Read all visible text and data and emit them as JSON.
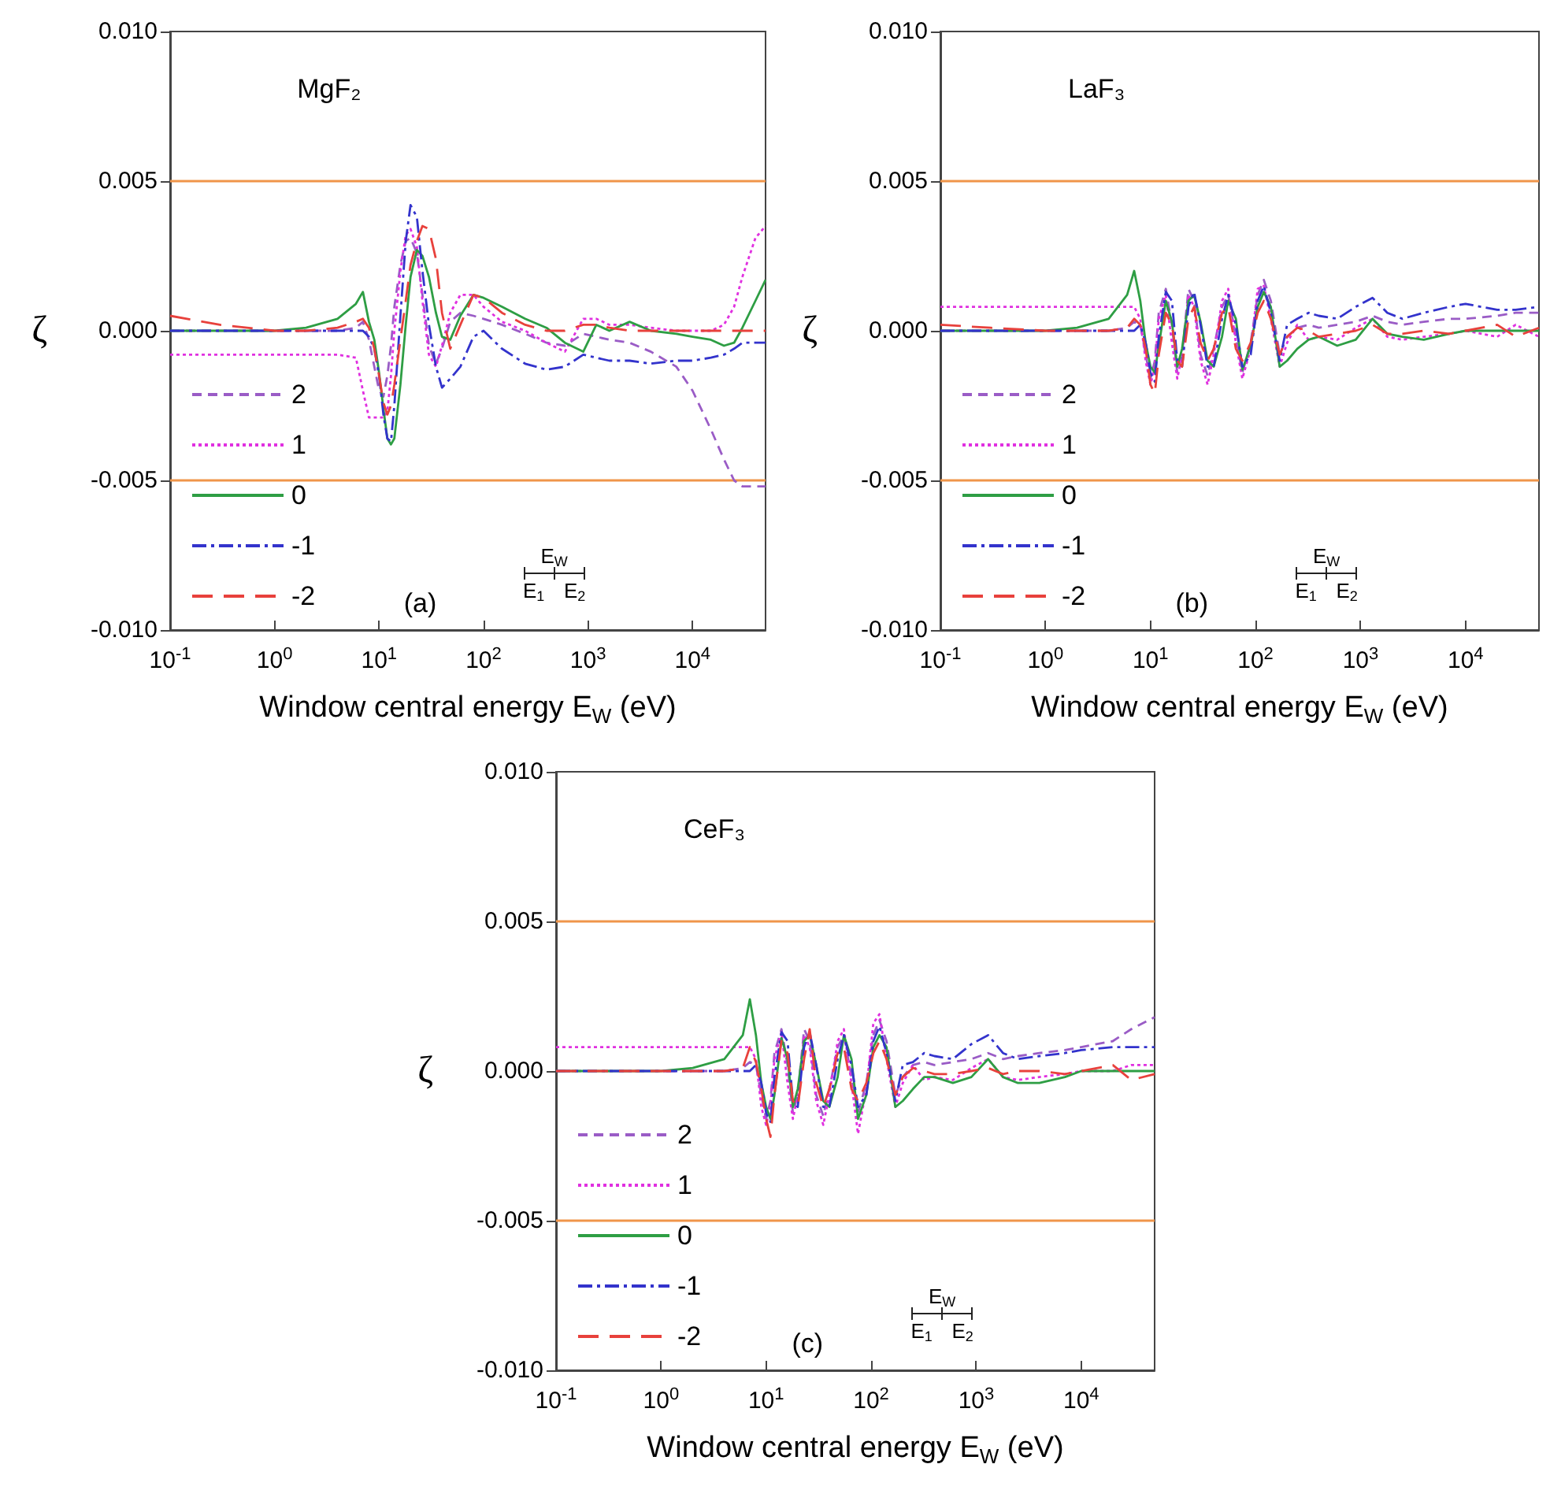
{
  "chart_data": [
    {
      "type": "line",
      "title": "MgF₂",
      "xlabel": "Window central energy E$_{W}$ (eV)",
      "ylabel": "ζ",
      "log": "x",
      "legend": "bottom left",
      "annotations": [
        "(a)",
        "E$_{W}$",
        "E$_{1}$",
        "E$_{2}$"
      ],
      "xlim": [
        0.1,
        50000
      ],
      "xticks": [
        {
          "value": 0.1,
          "label": "10$^{-1}$"
        },
        {
          "value": 1,
          "label": "10$^{0}$"
        },
        {
          "value": 10,
          "label": "10$^{1}$"
        },
        {
          "value": 100,
          "label": "10$^{2}$"
        },
        {
          "value": 1000,
          "label": "10$^{3}$"
        },
        {
          "value": 10000,
          "label": "10$^{4}$"
        }
      ],
      "ylim": [
        -0.01,
        0.01
      ],
      "yticks": [
        {
          "value": -0.01,
          "label": "-0.010"
        },
        {
          "value": -0.005,
          "label": "-0.005"
        },
        {
          "value": 0,
          "label": "0.000"
        },
        {
          "value": 0.005,
          "label": "0.005"
        },
        {
          "value": 0.01,
          "label": "0.010"
        }
      ],
      "ref_lines": [
        {
          "axis": "y",
          "value": 0.005,
          "color": "#f0954a"
        },
        {
          "axis": "y",
          "value": -0.005,
          "color": "#f0954a"
        }
      ],
      "x": [
        0.1,
        0.3,
        1,
        2,
        4,
        6,
        7,
        8,
        9,
        10,
        11,
        12,
        13,
        14,
        16,
        18,
        20,
        23,
        26,
        30,
        35,
        40,
        48,
        60,
        80,
        100,
        150,
        250,
        400,
        600,
        900,
        1200,
        1600,
        2500,
        4000,
        7000,
        10000,
        15000,
        20000,
        25000,
        30000,
        40000,
        50000
      ],
      "series": [
        {
          "name": "2",
          "color": "#9a5cc6",
          "line_style": "dashed",
          "values": [
            0,
            0,
            0,
            0,
            0,
            0.0001,
            0.0003,
            -0.0003,
            -0.0012,
            -0.002,
            -0.0022,
            -0.0015,
            -0.0005,
            0.0008,
            0.0022,
            0.003,
            0.0031,
            0.0026,
            0.0012,
            -0.0005,
            -0.0011,
            -0.0006,
            0.0003,
            0.0006,
            0.0005,
            0.0004,
            0.0002,
            -0.0001,
            -0.0004,
            -0.0005,
            -0.0001,
            -0.0002,
            -0.0003,
            -0.0004,
            -0.0007,
            -0.0012,
            -0.002,
            -0.0033,
            -0.0043,
            -0.005,
            -0.0052,
            -0.0052,
            -0.0052
          ]
        },
        {
          "name": "1",
          "color": "#e030e0",
          "line_style": "dotted",
          "values": [
            -0.0008,
            -0.0008,
            -0.0008,
            -0.0008,
            -0.0008,
            -0.0009,
            -0.002,
            -0.0029,
            -0.0029,
            -0.0029,
            -0.0029,
            -0.0027,
            -0.0015,
            0,
            0.002,
            0.0032,
            0.0034,
            0.0028,
            0.001,
            -0.0008,
            -0.0012,
            -0.0005,
            0.0006,
            0.0012,
            0.0012,
            0.0008,
            0.0003,
            0,
            -0.0004,
            -0.0007,
            0.0004,
            0.0004,
            0.0002,
            0.0002,
            0.0001,
            0,
            0,
            0,
            0.0002,
            0.0008,
            0.0018,
            0.0031,
            0.0035
          ]
        },
        {
          "name": "0",
          "color": "#2e9e44",
          "line_style": "solid",
          "values": [
            0,
            0,
            0,
            0.0001,
            0.0004,
            0.0009,
            0.0013,
            0.0003,
            -0.0003,
            -0.0014,
            -0.0026,
            -0.0036,
            -0.0038,
            -0.0036,
            -0.0018,
            0.0002,
            0.0018,
            0.0027,
            0.0025,
            0.0018,
            0.0006,
            -0.0002,
            -0.0003,
            0.0005,
            0.0012,
            0.0011,
            0.0008,
            0.0004,
            0.0001,
            -0.0004,
            -0.0007,
            0.0002,
            0,
            0.0003,
            0,
            -0.0001,
            -0.0002,
            -0.0003,
            -0.0005,
            -0.0004,
            0.0001,
            0.001,
            0.0017
          ]
        },
        {
          "name": "-1",
          "color": "#3333cc",
          "line_style": "dashdot",
          "values": [
            0,
            0,
            0,
            0,
            0,
            0,
            0,
            -0.0002,
            -0.0006,
            -0.0015,
            -0.0028,
            -0.0036,
            -0.0037,
            -0.0025,
            0.0005,
            0.003,
            0.0042,
            0.0038,
            0.002,
            0.0002,
            -0.0012,
            -0.0019,
            -0.0016,
            -0.0012,
            -0.0002,
            0,
            -0.0006,
            -0.0011,
            -0.0013,
            -0.0012,
            -0.0008,
            -0.0009,
            -0.001,
            -0.001,
            -0.0011,
            -0.001,
            -0.001,
            -0.0009,
            -0.0008,
            -0.0006,
            -0.0004,
            -0.0004,
            -0.0004
          ]
        },
        {
          "name": "-2",
          "color": "#e8413c",
          "line_style": "longdash",
          "values": [
            0.0005,
            0.0002,
            0,
            0,
            0.0001,
            0.0003,
            0.0004,
            0.0001,
            -0.0006,
            -0.0015,
            -0.0024,
            -0.0028,
            -0.0025,
            -0.0018,
            -0.0003,
            0.001,
            0.0022,
            0.003,
            0.0035,
            0.0034,
            0.0024,
            0.0006,
            -0.0006,
            0.0002,
            0.0012,
            0.0011,
            0.0006,
            0.0002,
            0,
            0,
            0.0002,
            0.0002,
            0.0001,
            0,
            0,
            0,
            0,
            0,
            0,
            0,
            0,
            0,
            0
          ]
        }
      ]
    },
    {
      "type": "line",
      "title": "LaF₃",
      "xlabel": "Window central energy E$_{W}$ (eV)",
      "ylabel": "ζ",
      "log": "x",
      "legend": "bottom left",
      "annotations": [
        "(b)",
        "E$_{W}$",
        "E$_{1}$",
        "E$_{2}$"
      ],
      "xlim": [
        0.1,
        50000
      ],
      "xticks": [
        {
          "value": 0.1,
          "label": "10$^{-1}$"
        },
        {
          "value": 1,
          "label": "10$^{0}$"
        },
        {
          "value": 10,
          "label": "10$^{1}$"
        },
        {
          "value": 100,
          "label": "10$^{2}$"
        },
        {
          "value": 1000,
          "label": "10$^{3}$"
        },
        {
          "value": 10000,
          "label": "10$^{4}$"
        }
      ],
      "ylim": [
        -0.01,
        0.01
      ],
      "yticks": [
        {
          "value": -0.01,
          "label": "-0.010"
        },
        {
          "value": -0.005,
          "label": "-0.005"
        },
        {
          "value": 0,
          "label": "0.000"
        },
        {
          "value": 0.005,
          "label": "0.005"
        },
        {
          "value": 0.01,
          "label": "0.010"
        }
      ],
      "ref_lines": [
        {
          "axis": "y",
          "value": 0.005,
          "color": "#f0954a"
        },
        {
          "axis": "y",
          "value": -0.005,
          "color": "#f0954a"
        }
      ],
      "x": [
        0.1,
        0.3,
        1,
        2,
        4,
        6,
        7,
        8,
        9,
        10,
        11,
        12,
        14,
        16,
        18,
        20,
        23,
        26,
        30,
        35,
        40,
        48,
        55,
        65,
        75,
        90,
        105,
        120,
        140,
        170,
        200,
        250,
        320,
        400,
        600,
        900,
        1300,
        1800,
        2500,
        4000,
        7000,
        10000,
        20000,
        30000,
        50000
      ],
      "series": [
        {
          "name": "2",
          "color": "#9a5cc6",
          "line_style": "dashed",
          "values": [
            0,
            0,
            0,
            0,
            0,
            0.0001,
            0.0003,
            0.0002,
            -0.0008,
            -0.0016,
            -0.001,
            0.0006,
            0.0014,
            0.0002,
            -0.0014,
            -0.0008,
            0.0014,
            0.001,
            -0.0008,
            -0.0015,
            -0.0006,
            0.0008,
            0.0012,
            -0.0002,
            -0.0014,
            -0.0004,
            0.0012,
            0.0017,
            0.001,
            -0.0008,
            -0.0002,
            0.0001,
            0.0002,
            0.0001,
            0.0002,
            0.0003,
            0.0005,
            0.0003,
            0.0002,
            0.0003,
            0.0004,
            0.0004,
            0.0005,
            0.0006,
            0.0006
          ]
        },
        {
          "name": "1",
          "color": "#e030e0",
          "line_style": "dotted",
          "values": [
            0.0008,
            0.0008,
            0.0008,
            0.0008,
            0.0008,
            0.0008,
            0.0008,
            0.0004,
            -0.001,
            -0.0018,
            -0.0012,
            0.0004,
            0.0012,
            -0.0004,
            -0.0016,
            -0.0008,
            0.0012,
            0.0008,
            -0.001,
            -0.0018,
            -0.0008,
            0.001,
            0.0014,
            -0.0004,
            -0.0016,
            -0.0006,
            0.0014,
            0.0015,
            0.0004,
            -0.0012,
            -0.0004,
            0.0002,
            -0.0003,
            -0.0002,
            -0.0003,
            0.0001,
            0.0004,
            -0.0002,
            -0.0003,
            -0.0002,
            -0.0001,
            0,
            -0.0002,
            0.0002,
            -0.0002
          ]
        },
        {
          "name": "0",
          "color": "#2e9e44",
          "line_style": "solid",
          "values": [
            0,
            0,
            0,
            0.0001,
            0.0004,
            0.0012,
            0.002,
            0.001,
            -0.0004,
            -0.0012,
            -0.0014,
            -0.0005,
            0.001,
            0.0003,
            -0.0012,
            -0.0006,
            0.001,
            0.0012,
            0.0003,
            -0.001,
            -0.0012,
            -0.0002,
            0.001,
            0.0004,
            -0.0013,
            -0.0005,
            0.0008,
            0.0013,
            0.0008,
            -0.0012,
            -0.001,
            -0.0006,
            -0.0003,
            -0.0002,
            -0.0005,
            -0.0003,
            0.0004,
            -0.0001,
            -0.0002,
            -0.0003,
            -0.0001,
            0,
            0,
            0,
            0
          ]
        },
        {
          "name": "-1",
          "color": "#3333cc",
          "line_style": "dashdot",
          "values": [
            0,
            0,
            0,
            0,
            0,
            0,
            0,
            0.0002,
            -0.0004,
            -0.0014,
            -0.0017,
            -0.0002,
            0.0013,
            0.001,
            -0.001,
            -0.0012,
            0.0008,
            0.0013,
            0.0002,
            -0.0012,
            -0.0012,
            0.0004,
            0.0012,
            0.0002,
            -0.0012,
            -0.0008,
            0.001,
            0.0015,
            0.0006,
            -0.001,
            0.0002,
            0.0004,
            0.0006,
            0.0005,
            0.0004,
            0.0008,
            0.0011,
            0.0006,
            0.0004,
            0.0006,
            0.0008,
            0.0009,
            0.0007,
            0.0007,
            0.0008
          ]
        },
        {
          "name": "-2",
          "color": "#e8413c",
          "line_style": "longdash",
          "values": [
            0.0002,
            0.0001,
            0,
            0,
            0,
            0.0001,
            0.0004,
            0.0002,
            -0.0006,
            -0.0018,
            -0.0021,
            -0.0008,
            0.0006,
            0.0002,
            -0.001,
            -0.0012,
            0.0004,
            0.0008,
            -0.0004,
            -0.001,
            -0.0006,
            0.0006,
            0.0008,
            -0.0006,
            -0.001,
            -0.0004,
            0.0006,
            0.001,
            0.0004,
            -0.0008,
            -0.0002,
            0.0001,
            0,
            -0.0002,
            -0.0001,
            0,
            0.0002,
            -0.0001,
            -0.0001,
            0,
            -0.0001,
            0,
            0.0002,
            -0.0002,
            0.0001
          ]
        }
      ]
    },
    {
      "type": "line",
      "title": "CeF₃",
      "xlabel": "Window central energy E$_{W}$ (eV)",
      "ylabel": "ζ",
      "log": "x",
      "legend": "bottom left",
      "annotations": [
        "(c)",
        "E$_{W}$",
        "E$_{1}$",
        "E$_{2}$"
      ],
      "xlim": [
        0.1,
        50000
      ],
      "xticks": [
        {
          "value": 0.1,
          "label": "10$^{-1}$"
        },
        {
          "value": 1,
          "label": "10$^{0}$"
        },
        {
          "value": 10,
          "label": "10$^{1}$"
        },
        {
          "value": 100,
          "label": "10$^{2}$"
        },
        {
          "value": 1000,
          "label": "10$^{3}$"
        },
        {
          "value": 10000,
          "label": "10$^{4}$"
        }
      ],
      "ylim": [
        -0.01,
        0.01
      ],
      "yticks": [
        {
          "value": -0.01,
          "label": "-0.010"
        },
        {
          "value": -0.005,
          "label": "-0.005"
        },
        {
          "value": 0,
          "label": "0.000"
        },
        {
          "value": 0.005,
          "label": "0.005"
        },
        {
          "value": 0.01,
          "label": "0.010"
        }
      ],
      "ref_lines": [
        {
          "axis": "y",
          "value": 0.005,
          "color": "#f0954a"
        },
        {
          "axis": "y",
          "value": -0.005,
          "color": "#f0954a"
        }
      ],
      "x": [
        0.1,
        0.3,
        1,
        2,
        4,
        6,
        7,
        8,
        9,
        10,
        11,
        12,
        14,
        16,
        18,
        20,
        23,
        26,
        30,
        35,
        40,
        48,
        55,
        65,
        75,
        90,
        105,
        120,
        140,
        170,
        200,
        250,
        320,
        400,
        600,
        900,
        1300,
        1800,
        2500,
        4000,
        7000,
        10000,
        20000,
        30000,
        50000
      ],
      "series": [
        {
          "name": "2",
          "color": "#9a5cc6",
          "line_style": "dashed",
          "values": [
            0,
            0,
            0,
            0,
            0,
            0.0001,
            0.0003,
            0.0002,
            -0.0008,
            -0.0016,
            -0.001,
            0.0006,
            0.0014,
            0.0002,
            -0.0014,
            -0.0008,
            0.0014,
            0.001,
            -0.0008,
            -0.0015,
            -0.0006,
            0.0008,
            0.0012,
            -0.0002,
            -0.0014,
            -0.0004,
            0.0012,
            0.0017,
            0.001,
            -0.0008,
            -0.0002,
            0.0002,
            0.0003,
            0.0002,
            0.0003,
            0.0004,
            0.0006,
            0.0004,
            0.0005,
            0.0006,
            0.0007,
            0.0008,
            0.001,
            0.0014,
            0.0018
          ]
        },
        {
          "name": "1",
          "color": "#e030e0",
          "line_style": "dotted",
          "values": [
            0.0008,
            0.0008,
            0.0008,
            0.0008,
            0.0008,
            0.0008,
            0.0008,
            0.0004,
            -0.0012,
            -0.0018,
            -0.0012,
            0.0004,
            0.0013,
            -0.0004,
            -0.0016,
            -0.0008,
            0.0012,
            0.0008,
            -0.001,
            -0.0018,
            -0.0008,
            0.001,
            0.0014,
            -0.0004,
            -0.0021,
            -0.0006,
            0.0016,
            0.0019,
            0.0004,
            -0.0012,
            -0.0004,
            0.0002,
            -0.0003,
            -0.0002,
            -0.0003,
            0.0001,
            0.0004,
            -0.0002,
            -0.0003,
            -0.0002,
            -0.0001,
            0,
            0,
            0.0002,
            0.0002
          ]
        },
        {
          "name": "0",
          "color": "#2e9e44",
          "line_style": "solid",
          "values": [
            0,
            0,
            0,
            0.0001,
            0.0004,
            0.0012,
            0.0024,
            0.0012,
            -0.0004,
            -0.0012,
            -0.0016,
            -0.0008,
            0.0011,
            0.0004,
            -0.0012,
            -0.0006,
            0.001,
            0.0012,
            0.0002,
            -0.001,
            -0.0012,
            -0.0002,
            0.0012,
            0.0004,
            -0.0016,
            -0.0008,
            0.0008,
            0.0012,
            0.0008,
            -0.0012,
            -0.001,
            -0.0006,
            -0.0002,
            -0.0002,
            -0.0004,
            -0.0002,
            0.0004,
            -0.0002,
            -0.0004,
            -0.0004,
            -0.0002,
            0,
            0,
            0,
            0
          ]
        },
        {
          "name": "-1",
          "color": "#3333cc",
          "line_style": "dashdot",
          "values": [
            0,
            0,
            0,
            0,
            0,
            0,
            0,
            0.0002,
            -0.0004,
            -0.0014,
            -0.0017,
            -0.0002,
            0.0013,
            0.001,
            -0.001,
            -0.0012,
            0.0008,
            0.0013,
            0.0002,
            -0.0012,
            -0.0012,
            0.0004,
            0.0012,
            0.0002,
            -0.0012,
            -0.0008,
            0.001,
            0.0015,
            0.0006,
            -0.001,
            0.0002,
            0.0003,
            0.0006,
            0.0005,
            0.0004,
            0.0009,
            0.0012,
            0.0006,
            0.0004,
            0.0005,
            0.0006,
            0.0007,
            0.0008,
            0.0008,
            0.0008
          ]
        },
        {
          "name": "-2",
          "color": "#e8413c",
          "line_style": "longdash",
          "values": [
            0,
            0,
            0,
            0,
            0,
            0.0001,
            0.0008,
            0.0003,
            -0.0006,
            -0.0016,
            -0.0022,
            -0.0008,
            0.001,
            0.0006,
            -0.001,
            -0.0012,
            0.0004,
            0.0014,
            -0.0004,
            -0.0012,
            -0.0006,
            0.0006,
            0.0008,
            -0.0006,
            -0.001,
            -0.0004,
            0.0006,
            0.001,
            0.0004,
            -0.0008,
            -0.0002,
            0.0001,
            0,
            -0.0001,
            -0.0001,
            0,
            0.0001,
            -0.0001,
            0,
            0,
            -0.0001,
            0,
            0.0002,
            -0.0003,
            -0.0001
          ]
        }
      ]
    }
  ]
}
